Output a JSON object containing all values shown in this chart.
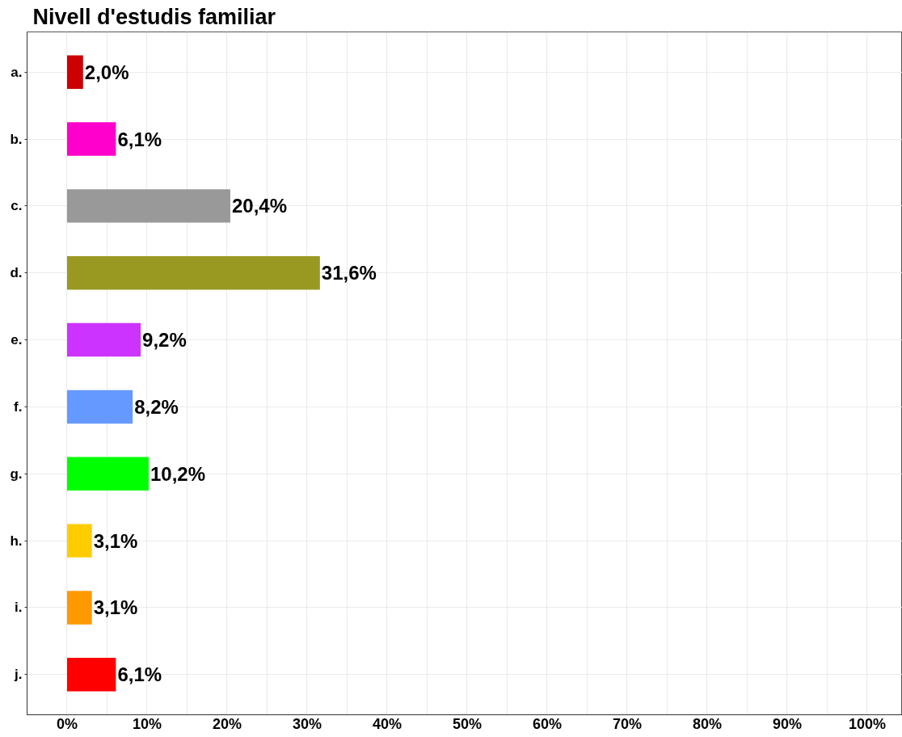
{
  "chart_data": {
    "type": "bar",
    "orientation": "horizontal",
    "title": "Nivell d'estudis familiar",
    "categories": [
      "a.",
      "b.",
      "c.",
      "d.",
      "e.",
      "f.",
      "g.",
      "h.",
      "i.",
      "j."
    ],
    "values": [
      2.0,
      6.1,
      20.4,
      31.6,
      9.2,
      8.2,
      10.2,
      3.1,
      3.1,
      6.1
    ],
    "value_labels": [
      "2,0%",
      "6,1%",
      "20,4%",
      "31,6%",
      "9,2%",
      "8,2%",
      "10,2%",
      "3,1%",
      "3,1%",
      "6,1%"
    ],
    "colors": [
      "#cc0000",
      "#ff00cc",
      "#999999",
      "#999922",
      "#cc33ff",
      "#6699ff",
      "#00ff00",
      "#ffcc00",
      "#ff9900",
      "#ff0000"
    ],
    "xlim": [
      -5,
      104.4
    ],
    "xticks": [
      {
        "value": 0,
        "label": "0%"
      },
      {
        "value": 5,
        "label": null
      },
      {
        "value": 10,
        "label": "10%"
      },
      {
        "value": 15,
        "label": null
      },
      {
        "value": 20,
        "label": "20%"
      },
      {
        "value": 25,
        "label": null
      },
      {
        "value": 30,
        "label": "30%"
      },
      {
        "value": 35,
        "label": null
      },
      {
        "value": 40,
        "label": "40%"
      },
      {
        "value": 45,
        "label": null
      },
      {
        "value": 50,
        "label": "50%"
      },
      {
        "value": 55,
        "label": null
      },
      {
        "value": 60,
        "label": "60%"
      },
      {
        "value": 65,
        "label": null
      },
      {
        "value": 70,
        "label": "70%"
      },
      {
        "value": 75,
        "label": null
      },
      {
        "value": 80,
        "label": "80%"
      },
      {
        "value": 85,
        "label": null
      },
      {
        "value": 90,
        "label": "90%"
      },
      {
        "value": 95,
        "label": null
      },
      {
        "value": 100,
        "label": "100%"
      }
    ],
    "grid": true
  }
}
